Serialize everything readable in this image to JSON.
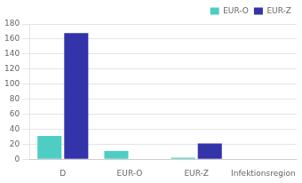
{
  "chart_data": {
    "type": "bar",
    "categories": [
      "D",
      "EUR-O",
      "EUR-Z",
      "Infektionsregion"
    ],
    "series": [
      {
        "name": "EUR-O",
        "color": "#4ECDC4",
        "values": [
          31,
          11,
          2,
          0
        ]
      },
      {
        "name": "EUR-Z",
        "color": "#3333AA",
        "values": [
          168,
          0,
          21,
          0
        ]
      }
    ],
    "ylim": [
      0,
      180
    ],
    "yticks": [
      0,
      20,
      40,
      60,
      80,
      100,
      120,
      140,
      160,
      180
    ],
    "grid": true,
    "legend": "upper right"
  }
}
